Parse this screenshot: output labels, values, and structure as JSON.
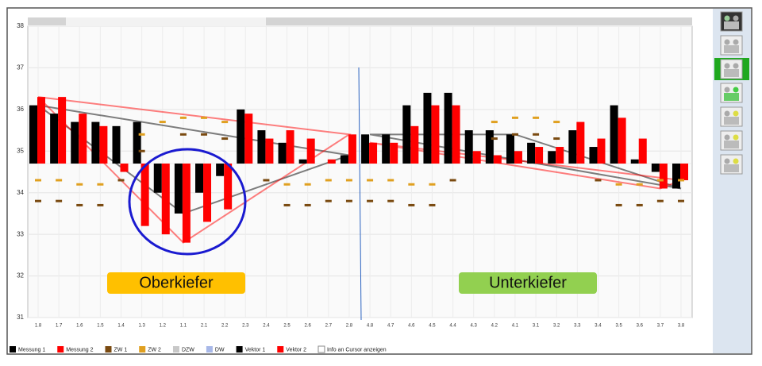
{
  "chart_data": {
    "type": "bar",
    "categories": [
      "1.8",
      "1.7",
      "1.6",
      "1.5",
      "1.4",
      "1.3",
      "1.2",
      "1.1",
      "2.1",
      "2.2",
      "2.3",
      "2.4",
      "2.5",
      "2.6",
      "2.7",
      "2.8",
      "4.8",
      "4.7",
      "4.6",
      "4.5",
      "4.4",
      "4.3",
      "4.2",
      "4.1",
      "3.1",
      "3.2",
      "3.3",
      "3.4",
      "3.5",
      "3.6",
      "3.7",
      "3.8"
    ],
    "bar_baseline": 34.7,
    "series": [
      {
        "name": "Messung 1",
        "color": "#000000",
        "mark": "bar",
        "values": [
          36.1,
          35.9,
          35.7,
          35.7,
          35.6,
          35.7,
          34.0,
          33.5,
          34.0,
          34.4,
          36.0,
          35.5,
          35.2,
          34.8,
          34.7,
          34.9,
          35.4,
          35.4,
          36.1,
          36.4,
          36.4,
          35.5,
          35.5,
          35.4,
          35.2,
          35.0,
          35.5,
          35.1,
          36.1,
          34.8,
          34.5,
          34.1
        ]
      },
      {
        "name": "Messung 2",
        "color": "#ff0000",
        "mark": "bar",
        "values": [
          36.3,
          36.3,
          35.9,
          35.6,
          34.5,
          33.2,
          33.0,
          32.8,
          33.3,
          33.6,
          35.9,
          35.3,
          35.5,
          35.3,
          34.8,
          35.4,
          35.2,
          35.2,
          35.6,
          36.1,
          36.1,
          35.0,
          34.9,
          35.0,
          35.1,
          35.1,
          35.7,
          35.3,
          35.8,
          35.3,
          34.1,
          34.3
        ]
      },
      {
        "name": "ZW 1",
        "color": "#7a4a10",
        "mark": "dash",
        "values": [
          33.8,
          33.8,
          33.7,
          33.7,
          34.3,
          35.0,
          null,
          35.4,
          35.4,
          35.3,
          null,
          34.3,
          33.7,
          33.7,
          33.8,
          33.8,
          33.8,
          33.8,
          33.7,
          33.7,
          34.3,
          null,
          35.3,
          35.4,
          35.4,
          35.3,
          null,
          34.3,
          33.7,
          33.7,
          33.8,
          33.8
        ]
      },
      {
        "name": "ZW 2",
        "color": "#e0a020",
        "mark": "dash",
        "values": [
          34.3,
          34.3,
          34.2,
          34.2,
          null,
          35.4,
          35.7,
          35.8,
          35.8,
          35.7,
          null,
          null,
          34.2,
          34.2,
          34.3,
          34.3,
          34.3,
          34.3,
          34.2,
          34.2,
          null,
          null,
          35.7,
          35.8,
          35.8,
          35.7,
          null,
          null,
          34.2,
          34.2,
          34.3,
          34.3
        ]
      },
      {
        "name": "DZW",
        "color": "#c8c8c8",
        "mark": "dash",
        "values": [
          null,
          null,
          null,
          null,
          null,
          null,
          null,
          null,
          null,
          null,
          null,
          null,
          null,
          null,
          null,
          null,
          null,
          null,
          null,
          null,
          null,
          null,
          null,
          null,
          null,
          null,
          null,
          null,
          null,
          null,
          null,
          null
        ]
      },
      {
        "name": "DW",
        "color": "#a8b8e8",
        "mark": "dash",
        "values": [
          null,
          null,
          null,
          null,
          null,
          null,
          null,
          null,
          null,
          null,
          null,
          null,
          null,
          null,
          null,
          null,
          null,
          null,
          null,
          null,
          null,
          null,
          null,
          null,
          null,
          null,
          null,
          null,
          null,
          null,
          null,
          null
        ]
      }
    ],
    "vectors": [
      {
        "name": "Vektor 1",
        "color": "#000000",
        "shapes": [
          {
            "x": [
              "1.8",
              "1.1",
              "2.8",
              "1.8"
            ],
            "values": [
              36.1,
              33.5,
              34.9,
              36.1
            ]
          },
          {
            "x": [
              "4.8",
              "4.1",
              "3.8",
              "4.8"
            ],
            "values": [
              35.4,
              35.4,
              34.1,
              35.4
            ]
          }
        ]
      },
      {
        "name": "Vektor 2",
        "color": "#ff0000",
        "shapes": [
          {
            "x": [
              "1.8",
              "1.1",
              "2.8",
              "1.8"
            ],
            "values": [
              36.3,
              32.8,
              35.4,
              36.3
            ]
          },
          {
            "x": [
              "4.8",
              "3.8",
              "3.7",
              "4.8"
            ],
            "values": [
              35.2,
              34.3,
              34.1,
              35.2
            ]
          }
        ]
      }
    ],
    "ylim": [
      31,
      38
    ],
    "yticks": [
      31,
      32,
      33,
      34,
      35,
      36,
      37,
      38
    ],
    "grid": true,
    "annotations": [
      {
        "text": "Oberkiefer",
        "color": "#ffc000"
      },
      {
        "text": "Unterkiefer",
        "color": "#92d050"
      }
    ],
    "checkbox_label": "Info an Cursor anzeigen"
  }
}
